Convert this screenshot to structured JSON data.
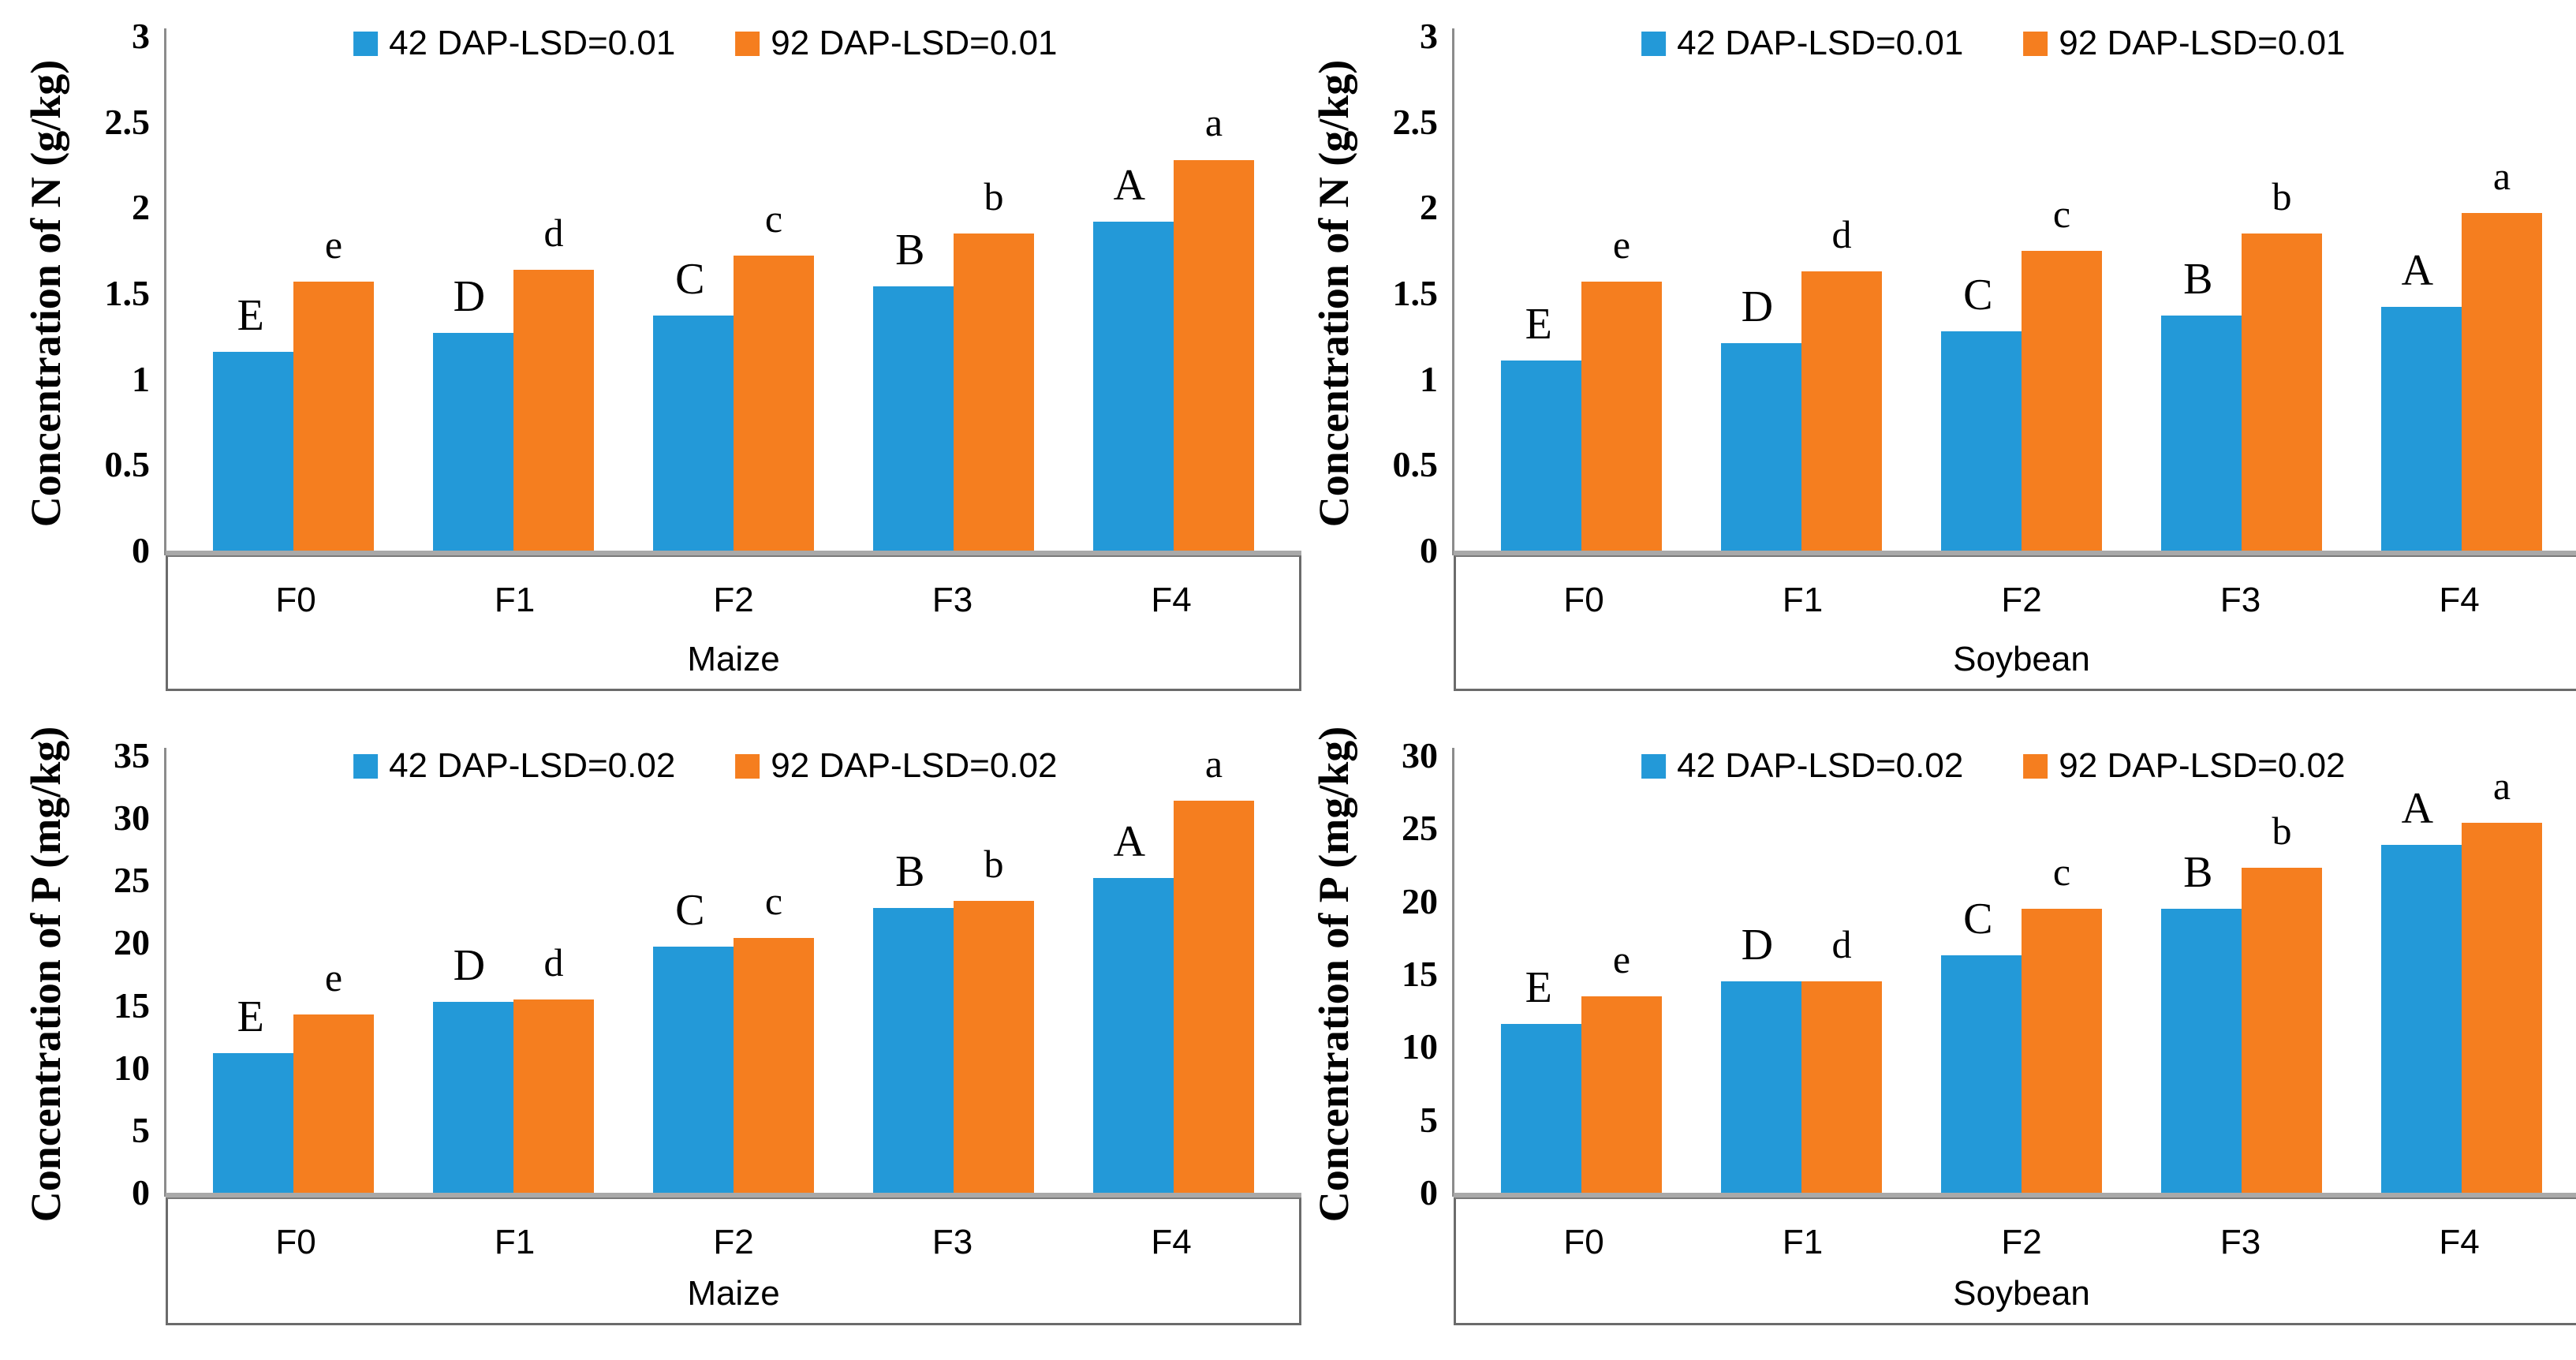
{
  "page": {
    "background": "#ffffff"
  },
  "colors": {
    "series1_blue": "#2399D8",
    "series2_orange": "#F57E1F",
    "baseline": "#A9A9A9",
    "y_axis_line": "#8C8C8C",
    "box_border": "#6B6B6B",
    "text": "#000000"
  },
  "chart_data": [
    {
      "type": "bar",
      "panel": "top-left",
      "ylabel": "Concentration of N (g/kg)",
      "xlabel": "Maize",
      "ylim": [
        0,
        3
      ],
      "ystep": 0.5,
      "yticks": [
        3,
        2.5,
        2,
        1.5,
        1,
        0.5,
        0
      ],
      "categories": [
        "F0",
        "F1",
        "F2",
        "F3",
        "F4"
      ],
      "grid": false,
      "legend_position": "top-center",
      "series": [
        {
          "name": "42 DAP-LSD=0.01",
          "color_key": "series1_blue",
          "values": [
            1.16,
            1.27,
            1.37,
            1.54,
            1.92
          ],
          "letters": [
            "E",
            "D",
            "C",
            "B",
            "A"
          ]
        },
        {
          "name": "92 DAP-LSD=0.01",
          "color_key": "series2_orange",
          "values": [
            1.57,
            1.64,
            1.72,
            1.85,
            2.28
          ],
          "letters": [
            "e",
            "d",
            "c",
            "b",
            "a"
          ]
        }
      ]
    },
    {
      "type": "bar",
      "panel": "top-right",
      "ylabel": "Concentration of N (g/kg)",
      "xlabel": "Soybean",
      "ylim": [
        0,
        3
      ],
      "ystep": 0.5,
      "yticks": [
        3,
        2.5,
        2,
        1.5,
        1,
        0.5,
        0
      ],
      "categories": [
        "F0",
        "F1",
        "F2",
        "F3",
        "F4"
      ],
      "grid": false,
      "legend_position": "top-center",
      "series": [
        {
          "name": "42 DAP-LSD=0.01",
          "color_key": "series1_blue",
          "values": [
            1.11,
            1.21,
            1.28,
            1.37,
            1.42
          ],
          "letters": [
            "E",
            "D",
            "C",
            "B",
            "A"
          ]
        },
        {
          "name": "92 DAP-LSD=0.01",
          "color_key": "series2_orange",
          "values": [
            1.57,
            1.63,
            1.75,
            1.85,
            1.97
          ],
          "letters": [
            "e",
            "d",
            "c",
            "b",
            "a"
          ]
        }
      ]
    },
    {
      "type": "bar",
      "panel": "bottom-left",
      "ylabel": "Concentration of P (mg/kg)",
      "xlabel": "Maize",
      "ylim": [
        0,
        35
      ],
      "ystep": 5,
      "yticks": [
        35,
        30,
        25,
        20,
        15,
        10,
        5,
        0
      ],
      "categories": [
        "F0",
        "F1",
        "F2",
        "F3",
        "F4"
      ],
      "grid": false,
      "legend_position": "top-center",
      "series": [
        {
          "name": "42 DAP-LSD=0.02",
          "color_key": "series1_blue",
          "values": [
            11.2,
            15.3,
            19.7,
            22.8,
            25.2
          ],
          "letters": [
            "E",
            "D",
            "C",
            "B",
            "A"
          ]
        },
        {
          "name": "92 DAP-LSD=0.02",
          "color_key": "series2_orange",
          "values": [
            14.3,
            15.5,
            20.4,
            23.4,
            31.4
          ],
          "letters": [
            "e",
            "d",
            "c",
            "b",
            "a"
          ]
        }
      ]
    },
    {
      "type": "bar",
      "panel": "bottom-right",
      "ylabel": "Concentration of P (mg/kg)",
      "xlabel": "Soybean",
      "ylim": [
        0,
        30
      ],
      "ystep": 5,
      "yticks": [
        30,
        25,
        20,
        15,
        10,
        5,
        0
      ],
      "categories": [
        "F0",
        "F1",
        "F2",
        "F3",
        "F4"
      ],
      "grid": false,
      "legend_position": "top-center",
      "series": [
        {
          "name": "42 DAP-LSD=0.02",
          "color_key": "series1_blue",
          "values": [
            11.6,
            14.5,
            16.3,
            19.5,
            23.9
          ],
          "letters": [
            "E",
            "D",
            "C",
            "B",
            "A"
          ]
        },
        {
          "name": "92 DAP-LSD=0.02",
          "color_key": "series2_orange",
          "values": [
            13.5,
            14.5,
            19.5,
            22.3,
            25.4
          ],
          "letters": [
            "e",
            "d",
            "c",
            "b",
            "a"
          ]
        }
      ]
    }
  ]
}
